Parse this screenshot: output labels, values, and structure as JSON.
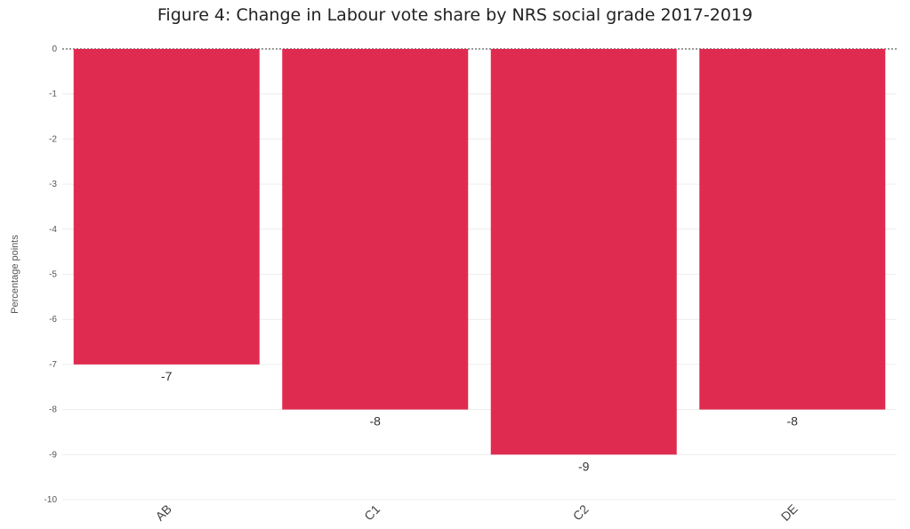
{
  "chart_data": {
    "type": "bar",
    "title": "Figure 4: Change in Labour vote share by NRS social grade 2017-2019",
    "xlabel": "",
    "ylabel": "Percentage points",
    "categories": [
      "AB",
      "C1",
      "C2",
      "DE"
    ],
    "values": [
      -7,
      -8,
      -9,
      -8
    ],
    "data_labels": [
      "-7",
      "-8",
      "-9",
      "-8"
    ],
    "ylim": [
      -10,
      0
    ],
    "yticks": [
      0,
      -1,
      -2,
      -3,
      -4,
      -5,
      -6,
      -7,
      -8,
      -9,
      -10
    ],
    "grid": true,
    "zero_line": "dotted",
    "bar_color": "#e02b50",
    "grid_color": "#ececec"
  }
}
